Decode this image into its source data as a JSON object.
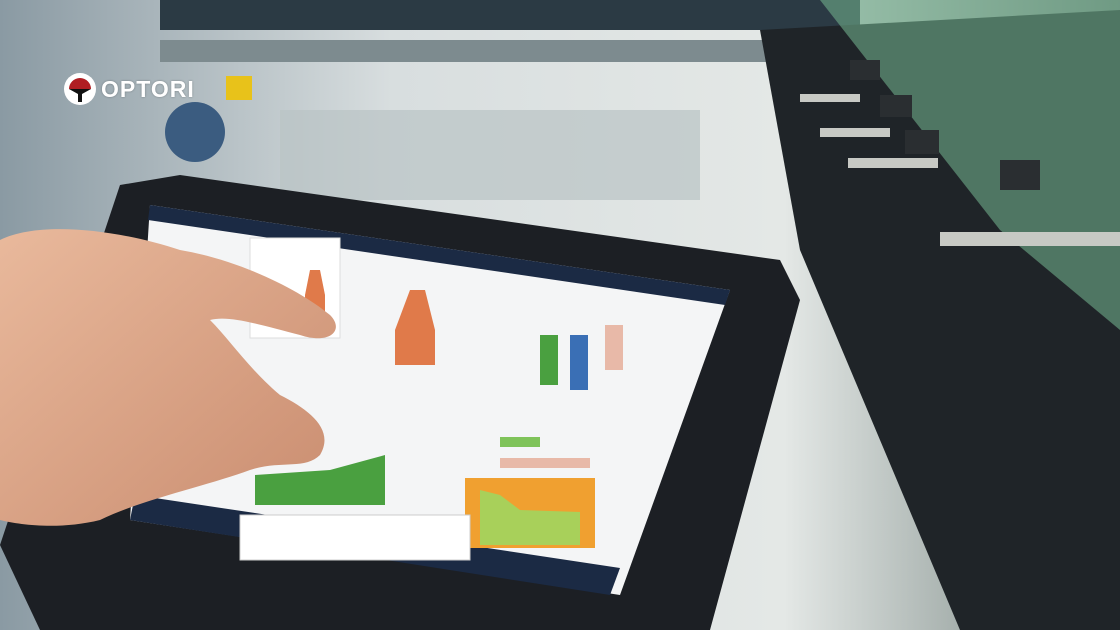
{
  "logo": {
    "text": "OPTORI",
    "mark_color": "#b01e23"
  },
  "colors": {
    "background": "#c9d3d6",
    "tablet_bezel": "#1c1f24",
    "screen": "#f4f5f6",
    "accent_green": "#4aa040",
    "accent_orange": "#e07a4a",
    "accent_blue": "#3a6fb5"
  }
}
